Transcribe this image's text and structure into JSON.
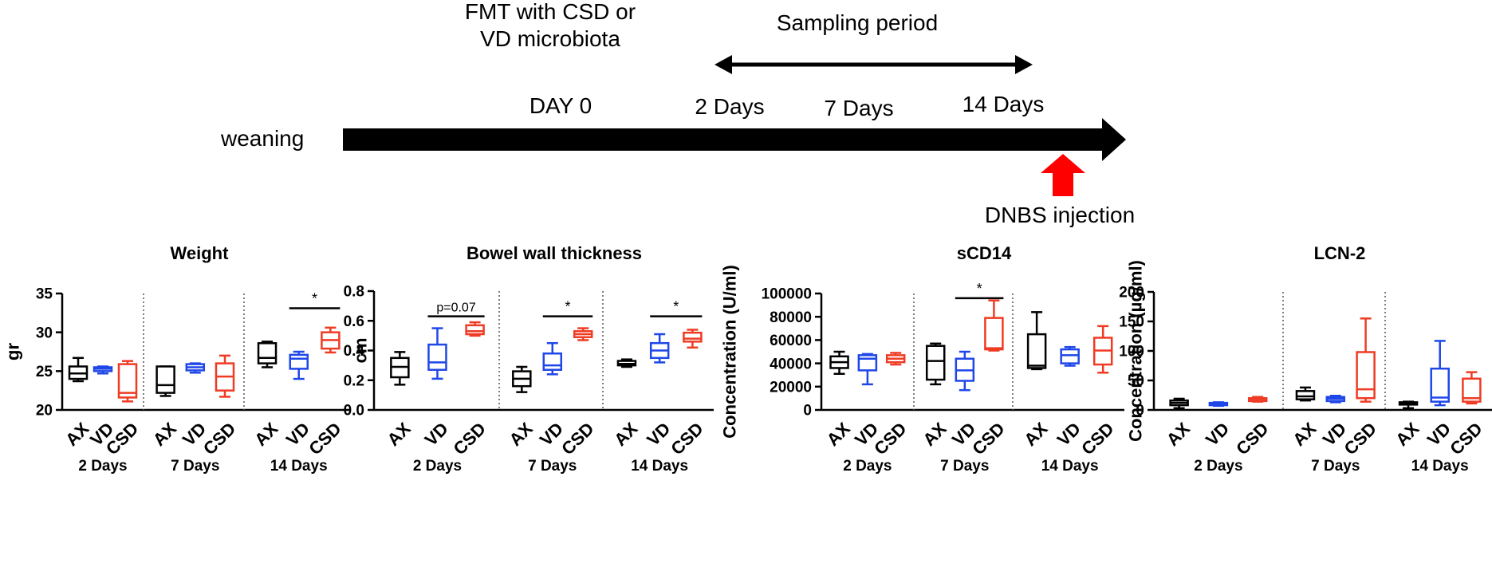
{
  "timeline": {
    "fmt_label_line1": "FMT with CSD or",
    "fmt_label_line2": "VD microbiota",
    "sampling_period": "Sampling period",
    "weaning": "weaning",
    "day0": "DAY 0",
    "day2": "2 Days",
    "day7": "7 Days",
    "day14": "14 Days",
    "dnbs": "DNBS injection"
  },
  "colors": {
    "AX": "#000000",
    "VD": "#1f47e8",
    "CSD": "#ef3b24",
    "arrow": "#000000",
    "injection_arrow": "#ff0000"
  },
  "chart_data": [
    {
      "type": "box",
      "title": "Weight",
      "ylabel": "gr",
      "ylim": [
        20,
        35
      ],
      "yticks": [
        20,
        25,
        30,
        35
      ],
      "groups": [
        "AX",
        "VD",
        "CSD"
      ],
      "periods": [
        "2 Days",
        "7 Days",
        "14 Days"
      ],
      "series": [
        {
          "period": "2 Days",
          "group": "AX",
          "min": 23.7,
          "q1": 24.0,
          "median": 24.7,
          "q3": 25.6,
          "max": 26.7
        },
        {
          "period": "2 Days",
          "group": "VD",
          "min": 24.7,
          "q1": 25.0,
          "median": 25.3,
          "q3": 25.5,
          "max": 25.6
        },
        {
          "period": "2 Days",
          "group": "CSD",
          "min": 21.1,
          "q1": 21.6,
          "median": 22.2,
          "q3": 25.9,
          "max": 26.3
        },
        {
          "period": "7 Days",
          "group": "AX",
          "min": 21.8,
          "q1": 22.2,
          "median": 23.2,
          "q3": 25.6,
          "max": 25.6
        },
        {
          "period": "7 Days",
          "group": "VD",
          "min": 24.8,
          "q1": 25.1,
          "median": 25.5,
          "q3": 25.9,
          "max": 26.0
        },
        {
          "period": "7 Days",
          "group": "CSD",
          "min": 21.7,
          "q1": 22.5,
          "median": 24.3,
          "q3": 26.0,
          "max": 27.0
        },
        {
          "period": "14 Days",
          "group": "AX",
          "min": 25.5,
          "q1": 26.0,
          "median": 26.7,
          "q3": 28.6,
          "max": 28.8
        },
        {
          "period": "14 Days",
          "group": "VD",
          "min": 24.0,
          "q1": 25.3,
          "median": 26.6,
          "q3": 27.1,
          "max": 27.5
        },
        {
          "period": "14 Days",
          "group": "CSD",
          "min": 27.4,
          "q1": 27.9,
          "median": 29.0,
          "q3": 30.0,
          "max": 30.6
        }
      ],
      "annotations": [
        {
          "period": "14 Days",
          "from": "VD",
          "to": "CSD",
          "text": "*",
          "y": 33.1
        }
      ]
    },
    {
      "type": "box",
      "title": "Bowel wall thickness",
      "ylabel": "cm",
      "ylim": [
        0.0,
        0.8
      ],
      "yticks": [
        "0.0",
        "0.2",
        "0.4",
        "0.6",
        "0.8"
      ],
      "groups": [
        "AX",
        "VD",
        "CSD"
      ],
      "periods": [
        "2 Days",
        "7 Days",
        "14 Days"
      ],
      "series": [
        {
          "period": "2 Days",
          "group": "AX",
          "min": 0.17,
          "q1": 0.22,
          "median": 0.29,
          "q3": 0.35,
          "max": 0.39
        },
        {
          "period": "2 Days",
          "group": "VD",
          "min": 0.21,
          "q1": 0.27,
          "median": 0.32,
          "q3": 0.44,
          "max": 0.55
        },
        {
          "period": "2 Days",
          "group": "CSD",
          "min": 0.5,
          "q1": 0.51,
          "median": 0.53,
          "q3": 0.57,
          "max": 0.59
        },
        {
          "period": "7 Days",
          "group": "AX",
          "min": 0.12,
          "q1": 0.16,
          "median": 0.21,
          "q3": 0.26,
          "max": 0.29
        },
        {
          "period": "7 Days",
          "group": "VD",
          "min": 0.24,
          "q1": 0.27,
          "median": 0.3,
          "q3": 0.38,
          "max": 0.45
        },
        {
          "period": "7 Days",
          "group": "CSD",
          "min": 0.47,
          "q1": 0.49,
          "median": 0.51,
          "q3": 0.53,
          "max": 0.55
        },
        {
          "period": "14 Days",
          "group": "AX",
          "min": 0.29,
          "q1": 0.3,
          "median": 0.31,
          "q3": 0.33,
          "max": 0.34
        },
        {
          "period": "14 Days",
          "group": "VD",
          "min": 0.32,
          "q1": 0.35,
          "median": 0.4,
          "q3": 0.45,
          "max": 0.51
        },
        {
          "period": "14 Days",
          "group": "CSD",
          "min": 0.42,
          "q1": 0.46,
          "median": 0.48,
          "q3": 0.52,
          "max": 0.54
        }
      ],
      "annotations": [
        {
          "period": "2 Days",
          "from": "VD",
          "to": "CSD",
          "text": "p=0.07",
          "y": 0.63
        },
        {
          "period": "7 Days",
          "from": "VD",
          "to": "CSD",
          "text": "*",
          "y": 0.63
        },
        {
          "period": "14 Days",
          "from": "VD",
          "to": "CSD",
          "text": "*",
          "y": 0.63
        }
      ]
    },
    {
      "type": "box",
      "title": "sCD14",
      "ylabel": "Concentration (U/ml)",
      "ylim": [
        0,
        100000
      ],
      "yticks": [
        "0",
        "20000",
        "40000",
        "60000",
        "80000",
        "100000"
      ],
      "groups": [
        "AX",
        "VD",
        "CSD"
      ],
      "periods": [
        "2 Days",
        "7 Days",
        "14 Days"
      ],
      "series": [
        {
          "period": "2 Days",
          "group": "AX",
          "min": 31000,
          "q1": 36000,
          "median": 41000,
          "q3": 46000,
          "max": 50000
        },
        {
          "period": "2 Days",
          "group": "VD",
          "min": 22000,
          "q1": 34000,
          "median": 44000,
          "q3": 47000,
          "max": 48000
        },
        {
          "period": "2 Days",
          "group": "CSD",
          "min": 39000,
          "q1": 41000,
          "median": 44000,
          "q3": 47000,
          "max": 49000
        },
        {
          "period": "7 Days",
          "group": "AX",
          "min": 22000,
          "q1": 26000,
          "median": 42000,
          "q3": 55000,
          "max": 57000
        },
        {
          "period": "7 Days",
          "group": "VD",
          "min": 17000,
          "q1": 25000,
          "median": 34000,
          "q3": 44000,
          "max": 50000
        },
        {
          "period": "7 Days",
          "group": "CSD",
          "min": 51000,
          "q1": 52000,
          "median": 53000,
          "q3": 79000,
          "max": 94000
        },
        {
          "period": "14 Days",
          "group": "AX",
          "min": 35000,
          "q1": 36000,
          "median": 38000,
          "q3": 65000,
          "max": 84000
        },
        {
          "period": "14 Days",
          "group": "VD",
          "min": 38000,
          "q1": 40000,
          "median": 47000,
          "q3": 52000,
          "max": 54000
        },
        {
          "period": "14 Days",
          "group": "CSD",
          "min": 32000,
          "q1": 39000,
          "median": 51000,
          "q3": 62000,
          "max": 72000
        }
      ],
      "annotations": [
        {
          "period": "7 Days",
          "from": "VD",
          "to": "CSD",
          "text": "*",
          "y": 96000
        }
      ]
    },
    {
      "type": "box",
      "title": "LCN-2",
      "ylabel": "Concentration (µg/ml)",
      "ylim": [
        0,
        200
      ],
      "yticks": [
        "0",
        "50",
        "100",
        "150",
        "200"
      ],
      "groups": [
        "AX",
        "VD",
        "CSD"
      ],
      "periods": [
        "2 Days",
        "7 Days",
        "14 Days"
      ],
      "series": [
        {
          "period": "2 Days",
          "group": "AX",
          "min": 3,
          "q1": 8,
          "median": 12,
          "q3": 16,
          "max": 19
        },
        {
          "period": "2 Days",
          "group": "VD",
          "min": 7,
          "q1": 8,
          "median": 10,
          "q3": 12,
          "max": 13
        },
        {
          "period": "2 Days",
          "group": "CSD",
          "min": 14,
          "q1": 15,
          "median": 18,
          "q3": 20,
          "max": 22
        },
        {
          "period": "7 Days",
          "group": "AX",
          "min": 16,
          "q1": 18,
          "median": 23,
          "q3": 32,
          "max": 38
        },
        {
          "period": "7 Days",
          "group": "VD",
          "min": 13,
          "q1": 15,
          "median": 19,
          "q3": 22,
          "max": 24
        },
        {
          "period": "7 Days",
          "group": "CSD",
          "min": 14,
          "q1": 20,
          "median": 35,
          "q3": 98,
          "max": 155
        },
        {
          "period": "14 Days",
          "group": "AX",
          "min": 3,
          "q1": 9,
          "median": 11,
          "q3": 13,
          "max": 14
        },
        {
          "period": "14 Days",
          "group": "VD",
          "min": 8,
          "q1": 14,
          "median": 21,
          "q3": 70,
          "max": 117
        },
        {
          "period": "14 Days",
          "group": "CSD",
          "min": 11,
          "q1": 14,
          "median": 20,
          "q3": 53,
          "max": 64
        }
      ],
      "annotations": []
    }
  ]
}
